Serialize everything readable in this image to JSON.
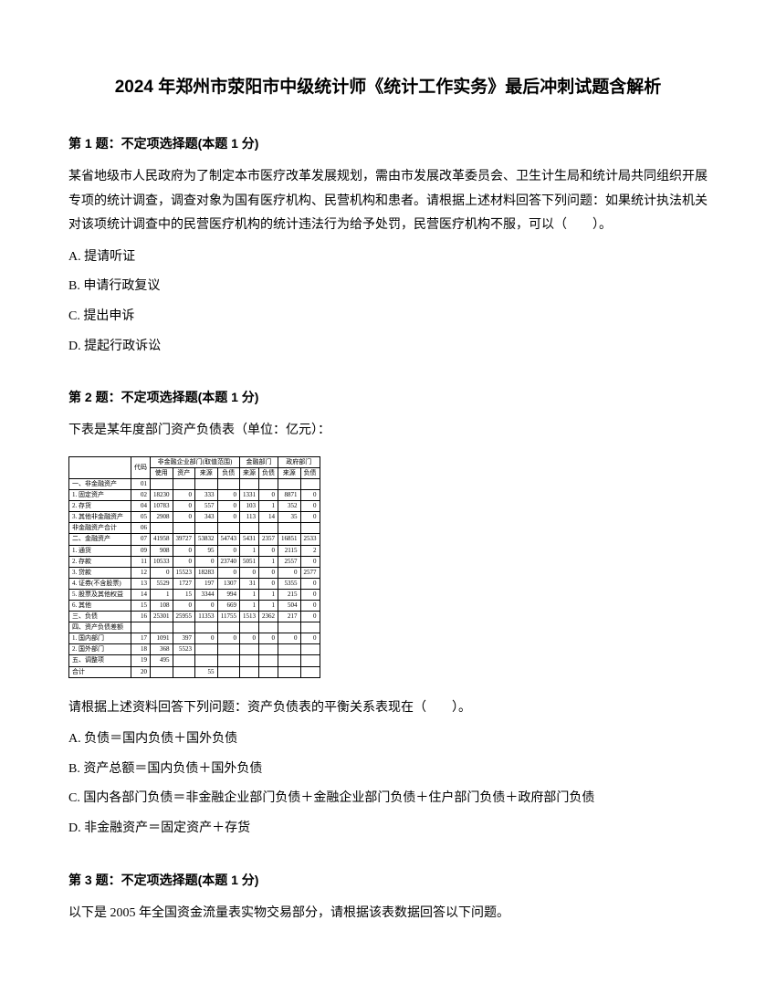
{
  "title": "2024 年郑州市荥阳市中级统计师《统计工作实务》最后冲刺试题含解析",
  "q1": {
    "header": "第 1 题：不定项选择题(本题 1 分)",
    "text": "某省地级市人民政府为了制定本市医疗改革发展规划，需由市发展改革委员会、卫生计生局和统计局共同组织开展专项的统计调查，调查对象为国有医疗机构、民营机构和患者。请根据上述材料回答下列问题：如果统计执法机关对该项统计调查中的民营医疗机构的统计违法行为给予处罚，民营医疗机构不服，可以（　　）。",
    "optA": "A. 提请听证",
    "optB": "B. 申请行政复议",
    "optC": "C. 提出申诉",
    "optD": "D. 提起行政诉讼"
  },
  "q2": {
    "header": "第 2 题：不定项选择题(本题 1 分)",
    "intro": "下表是某年度部门资产负债表（单位：亿元）：",
    "followup": "请根据上述资料回答下列问题：资产负债表的平衡关系表现在（　　）。",
    "optA": "A. 负债＝国内负债＋国外负债",
    "optB": "B. 资产总额＝国内负债＋国外负债",
    "optC": "C. 国内各部门负债＝非金融企业部门负债＋金融企业部门负债＋住户部门负债＋政府部门负债",
    "optD": "D. 非金融资产＝固定资产＋存货"
  },
  "q3": {
    "header": "第 3 题：不定项选择题(本题 1 分)",
    "text": "以下是 2005 年全国资金流量表实物交易部分，请根据该表数据回答以下问题。"
  },
  "table": {
    "colors": {
      "border": "#000000"
    },
    "font_size": 7,
    "headers_top": [
      "非金融企业部门(取值范围)",
      "金融部门",
      "政府部门"
    ],
    "headers_sub": [
      "使用",
      "资产",
      "来源",
      "负债",
      "来源",
      "负债",
      "来源",
      "负债"
    ],
    "rows": [
      [
        "一、非金融资产",
        "01",
        "",
        "",
        "",
        "",
        "",
        "",
        "",
        ""
      ],
      [
        "1. 固定资产",
        "02",
        "18230",
        "0",
        "333",
        "0",
        "1331",
        "0",
        "8871",
        "0"
      ],
      [
        "2. 存货",
        "04",
        "10783",
        "0",
        "557",
        "0",
        "103",
        "1",
        "352",
        "0"
      ],
      [
        "3. 其他非金融资产",
        "05",
        "2908",
        "0",
        "343",
        "0",
        "113",
        "14",
        "35",
        "0"
      ],
      [
        "非金融资产合计",
        "06",
        "",
        "",
        "",
        "",
        "",
        "",
        "",
        ""
      ],
      [
        "二、金融资产",
        "07",
        "41958",
        "39727",
        "53832",
        "54743",
        "5431",
        "2357",
        "16851",
        "2533"
      ],
      [
        "1. 通货",
        "09",
        "908",
        "0",
        "95",
        "0",
        "1",
        "0",
        "2115",
        "2"
      ],
      [
        "2. 存款",
        "11",
        "10533",
        "0",
        "0",
        "23740",
        "5051",
        "1",
        "2557",
        "0"
      ],
      [
        "3. 贷款",
        "12",
        "0",
        "15523",
        "18283",
        "0",
        "0",
        "0",
        "0",
        "2577"
      ],
      [
        "4. 证券(不含股票)",
        "13",
        "5529",
        "1727",
        "197",
        "1307",
        "31",
        "0",
        "5355",
        "0"
      ],
      [
        "5. 股票及其他权益",
        "14",
        "1",
        "15",
        "3344",
        "994",
        "1",
        "1",
        "215",
        "0"
      ],
      [
        "6. 其他",
        "15",
        "108",
        "0",
        "0",
        "669",
        "1",
        "1",
        "504",
        "0"
      ],
      [
        "三、负债",
        "16",
        "25301",
        "25955",
        "11353",
        "11755",
        "1513",
        "2362",
        "217",
        "0"
      ],
      [
        "四、资产负债差额",
        "",
        "",
        "",
        "",
        "",
        "",
        "",
        "",
        ""
      ],
      [
        "1. 国内部门",
        "17",
        "1091",
        "397",
        "0",
        "0",
        "0",
        "0",
        "0",
        "0"
      ],
      [
        "2. 国外部门",
        "18",
        "368",
        "5523",
        "",
        "",
        "",
        "",
        "",
        ""
      ],
      [
        "五、调整项",
        "19",
        "495",
        "",
        "",
        "",
        "",
        "",
        "",
        ""
      ],
      [
        "合计",
        "20",
        "",
        "",
        "55",
        "",
        "",
        "",
        "",
        ""
      ]
    ]
  }
}
